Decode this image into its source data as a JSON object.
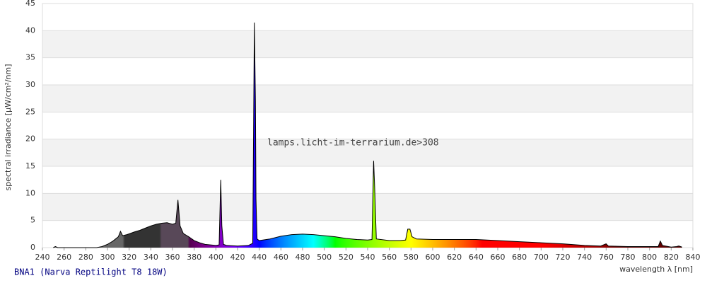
{
  "chart_data": {
    "type": "area",
    "ylabel": "spectral irradiance [µW/cm²/nm]",
    "xlabel": "wavelength λ [nm]",
    "annotation": "lamps.licht-im-terrarium.de>308",
    "caption": "BNA1 (Narva Reptilight T8 18W)",
    "xlim": [
      240,
      840
    ],
    "ylim": [
      0,
      45
    ],
    "xticks": [
      240,
      260,
      280,
      300,
      320,
      340,
      360,
      380,
      400,
      420,
      440,
      460,
      480,
      500,
      520,
      540,
      560,
      580,
      600,
      620,
      640,
      660,
      680,
      700,
      720,
      740,
      760,
      780,
      800,
      820,
      840
    ],
    "yticks": [
      0,
      5,
      10,
      15,
      20,
      25,
      30,
      35,
      40,
      45
    ],
    "grid": true,
    "line_color": "#000000",
    "x": [
      250,
      252,
      254,
      290,
      295,
      300,
      305,
      310,
      312,
      314,
      318,
      325,
      330,
      335,
      340,
      345,
      350,
      355,
      360,
      363,
      365,
      367,
      370,
      375,
      380,
      385,
      390,
      395,
      400,
      403,
      404.5,
      405.5,
      407,
      410,
      420,
      430,
      434,
      435.5,
      436.5,
      437,
      438,
      440,
      450,
      460,
      470,
      480,
      490,
      500,
      510,
      520,
      530,
      540,
      544,
      545.5,
      546.5,
      548,
      560,
      570,
      575,
      577,
      579,
      581,
      585,
      600,
      620,
      640,
      660,
      680,
      700,
      720,
      740,
      755,
      760,
      762,
      780,
      800,
      808,
      810,
      812,
      820,
      825,
      827,
      830
    ],
    "values": [
      0,
      0.2,
      0,
      0,
      0.2,
      0.6,
      1.2,
      2,
      3,
      2.2,
      2.4,
      2.9,
      3.2,
      3.6,
      4,
      4.3,
      4.5,
      4.6,
      4.3,
      4.5,
      8.8,
      4,
      2.6,
      2,
      1.3,
      0.9,
      0.6,
      0.5,
      0.4,
      0.5,
      12.5,
      4,
      0.6,
      0.4,
      0.3,
      0.4,
      0.8,
      41.5,
      27,
      9,
      1.6,
      1.3,
      1.6,
      2.1,
      2.4,
      2.5,
      2.4,
      2.2,
      2,
      1.7,
      1.5,
      1.4,
      1.5,
      16,
      11,
      1.6,
      1.3,
      1.3,
      1.4,
      3.4,
      3.4,
      2,
      1.6,
      1.5,
      1.5,
      1.5,
      1.3,
      1.1,
      0.9,
      0.7,
      0.4,
      0.3,
      0.7,
      0.3,
      0.2,
      0.2,
      0.2,
      1.2,
      0.4,
      0.1,
      0.2,
      0.3,
      0.1
    ]
  }
}
